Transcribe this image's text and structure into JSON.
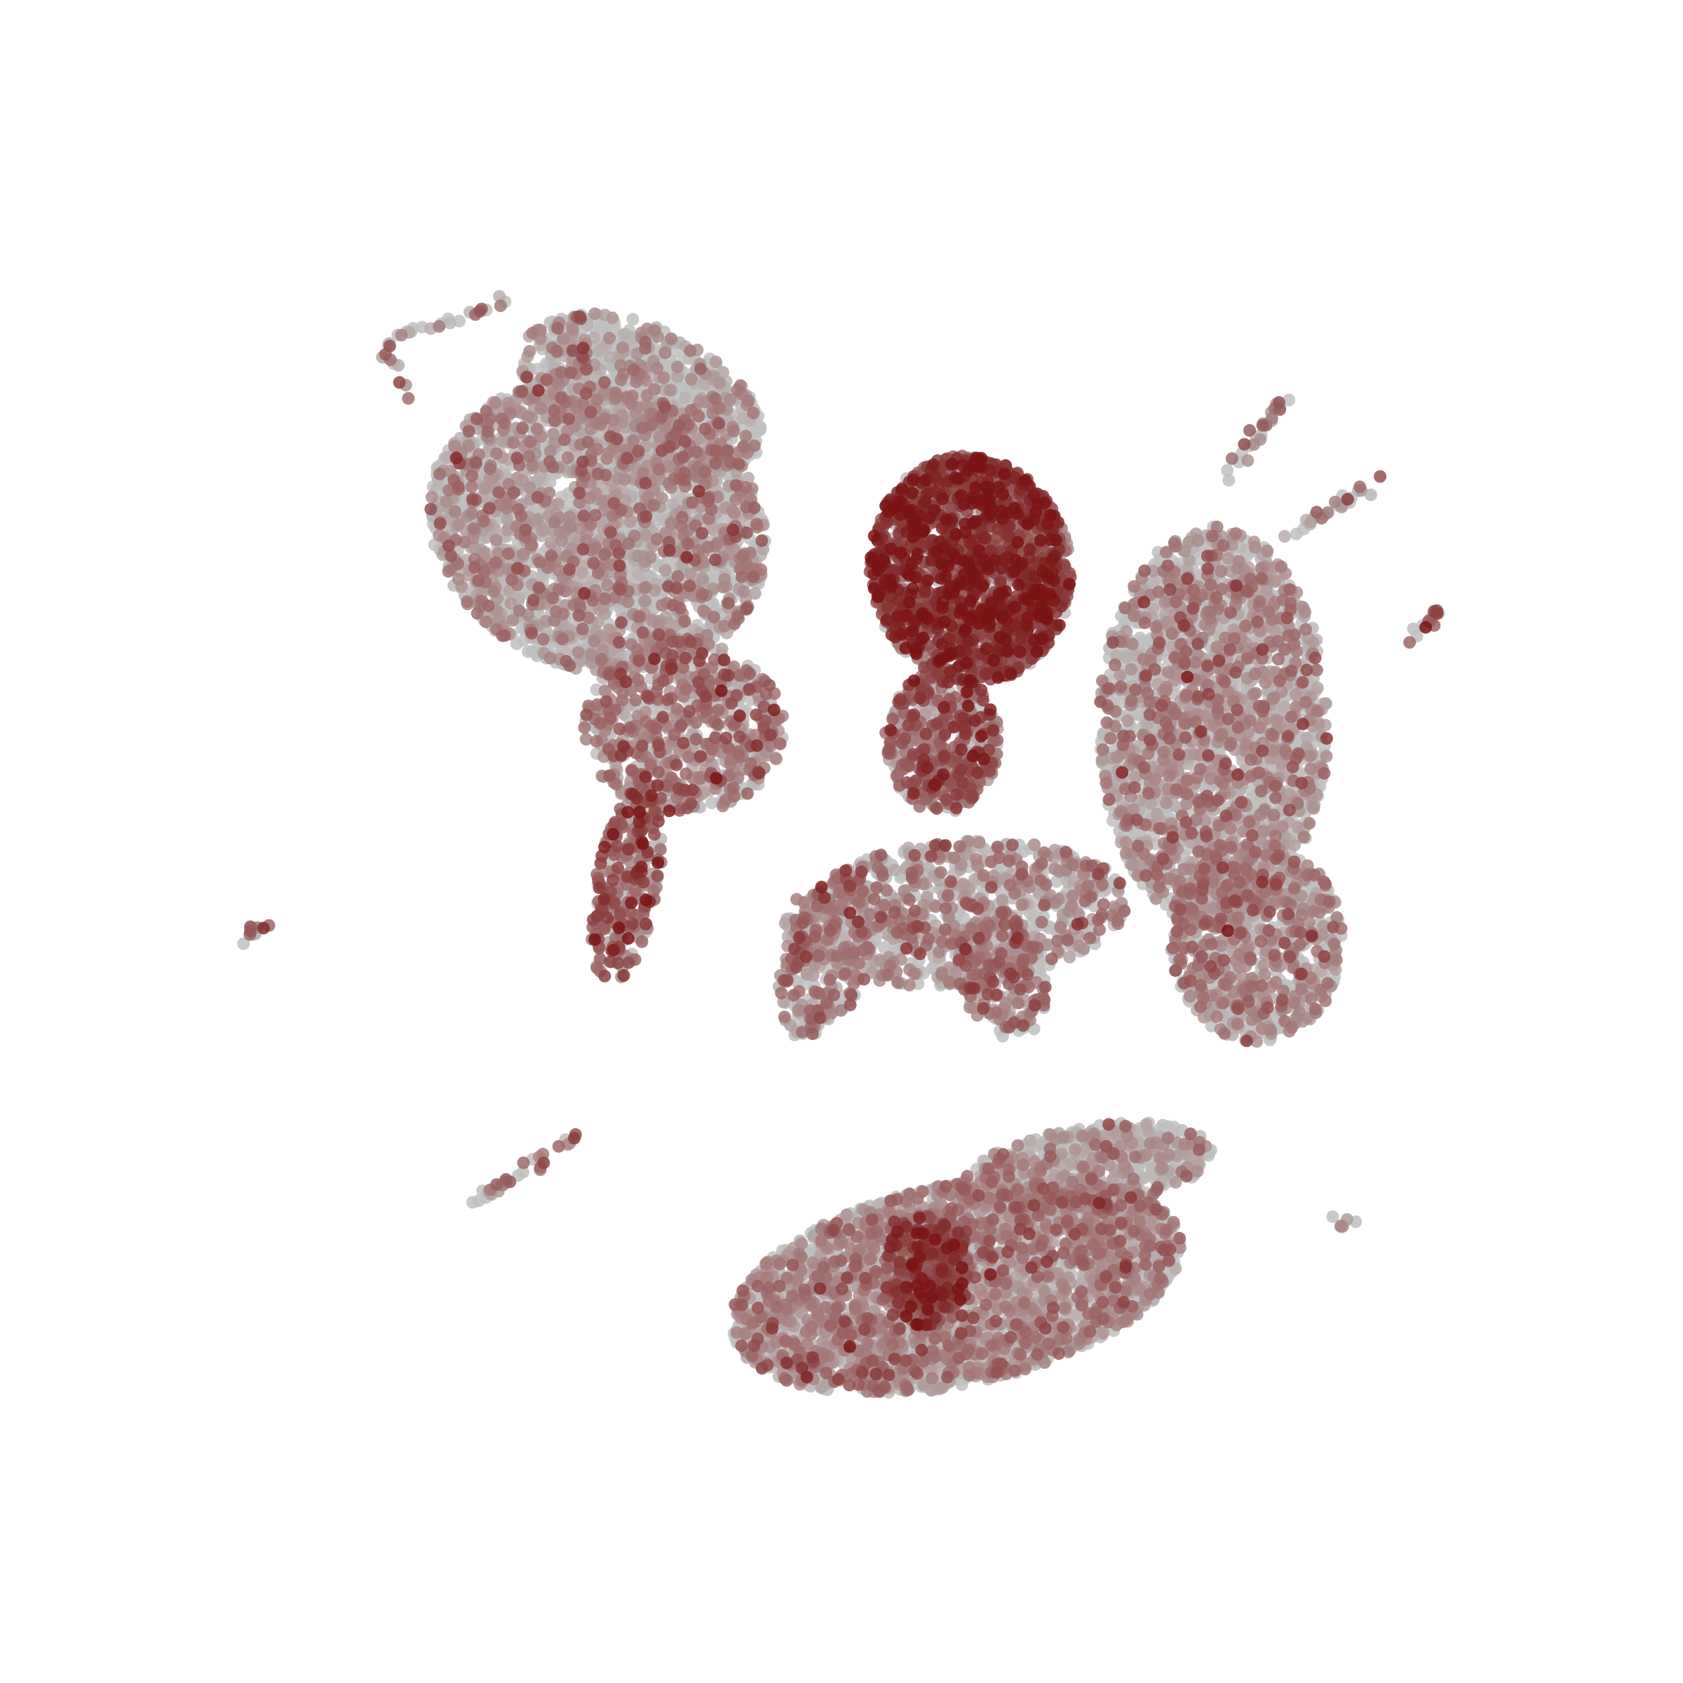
{
  "chart_data": {
    "type": "scatter",
    "title": "",
    "xlabel": "",
    "ylabel": "",
    "axes_visible": false,
    "grid": false,
    "legend": "none",
    "xlim": [
      0,
      100
    ],
    "ylim": [
      0,
      100
    ],
    "colors": {
      "background": "#ffffff",
      "low": "#c0c0c0",
      "high": "#7a1414"
    },
    "value_range": [
      0,
      1
    ],
    "regions": [
      {
        "id": "upper-left-lobe",
        "cx": 33,
        "cy": 72,
        "rx": 12,
        "ry": 10,
        "angle": -20,
        "count": 2600,
        "mean_value": 0.18
      },
      {
        "id": "upper-left-lobe-top",
        "cx": 36,
        "cy": 81,
        "rx": 9,
        "ry": 5,
        "angle": -25,
        "count": 900,
        "mean_value": 0.15
      },
      {
        "id": "left-stalk",
        "cx": 35,
        "cy": 47,
        "rx": 2.2,
        "ry": 7,
        "angle": -10,
        "count": 260,
        "mean_value": 0.55
      },
      {
        "id": "left-mid-cluster",
        "cx": 39,
        "cy": 58,
        "rx": 7,
        "ry": 6,
        "angle": 0,
        "count": 700,
        "mean_value": 0.35
      },
      {
        "id": "upper-center-hotspot",
        "cx": 59,
        "cy": 69,
        "rx": 7,
        "ry": 8,
        "angle": 10,
        "count": 1700,
        "mean_value": 0.72
      },
      {
        "id": "center-branch",
        "cx": 57,
        "cy": 57,
        "rx": 4,
        "ry": 5,
        "angle": 0,
        "count": 450,
        "mean_value": 0.5
      },
      {
        "id": "right-lobe",
        "cx": 76,
        "cy": 58,
        "rx": 8,
        "ry": 14,
        "angle": 0,
        "count": 2300,
        "mean_value": 0.22
      },
      {
        "id": "right-lobe-lower",
        "cx": 79,
        "cy": 43,
        "rx": 6,
        "ry": 7,
        "angle": 0,
        "count": 800,
        "mean_value": 0.28
      },
      {
        "id": "center-lower-arcs",
        "cx": 58,
        "cy": 45,
        "rx": 12,
        "ry": 5,
        "angle": 5,
        "count": 900,
        "mean_value": 0.28
      },
      {
        "id": "lower-loop-left",
        "cx": 49,
        "cy": 42,
        "rx": 3,
        "ry": 6,
        "angle": -20,
        "count": 260,
        "mean_value": 0.35
      },
      {
        "id": "lower-loop-right",
        "cx": 61,
        "cy": 41,
        "rx": 3,
        "ry": 5,
        "angle": 20,
        "count": 240,
        "mean_value": 0.35
      },
      {
        "id": "bottom-cluster",
        "cx": 58,
        "cy": 19,
        "rx": 16,
        "ry": 7,
        "angle": 12,
        "count": 3200,
        "mean_value": 0.25
      },
      {
        "id": "bottom-hotspot",
        "cx": 56,
        "cy": 20,
        "rx": 3,
        "ry": 4,
        "angle": 0,
        "count": 350,
        "mean_value": 0.65
      },
      {
        "id": "bottom-cluster-top",
        "cx": 67,
        "cy": 27,
        "rx": 9,
        "ry": 3,
        "angle": 10,
        "count": 700,
        "mean_value": 0.15
      }
    ],
    "strands": [
      {
        "id": "top-left-arc",
        "from": [
          18,
          85
        ],
        "to": [
          27,
          88
        ],
        "count": 22,
        "mean_value": 0.3
      },
      {
        "id": "top-left-tail",
        "from": [
          18,
          85
        ],
        "to": [
          20,
          81
        ],
        "count": 10,
        "mean_value": 0.45
      },
      {
        "id": "top-right-strand-1",
        "from": [
          77,
          75.5
        ],
        "to": [
          81,
          81
        ],
        "count": 28,
        "mean_value": 0.35
      },
      {
        "id": "top-right-strand-2",
        "from": [
          81,
          71
        ],
        "to": [
          87,
          75
        ],
        "count": 26,
        "mean_value": 0.3
      },
      {
        "id": "right-small-strand",
        "from": [
          89.5,
          64
        ],
        "to": [
          92,
          66
        ],
        "count": 14,
        "mean_value": 0.45
      },
      {
        "id": "left-small-strand",
        "from": [
          8,
          43
        ],
        "to": [
          10,
          44.5
        ],
        "count": 12,
        "mean_value": 0.45
      },
      {
        "id": "bottom-left-strand",
        "from": [
          24,
          24.5
        ],
        "to": [
          31.5,
          29.5
        ],
        "count": 32,
        "mean_value": 0.35
      },
      {
        "id": "bottom-right-dot",
        "from": [
          84.5,
          23.5
        ],
        "to": [
          85.5,
          23
        ],
        "count": 6,
        "mean_value": 0.35
      }
    ]
  }
}
